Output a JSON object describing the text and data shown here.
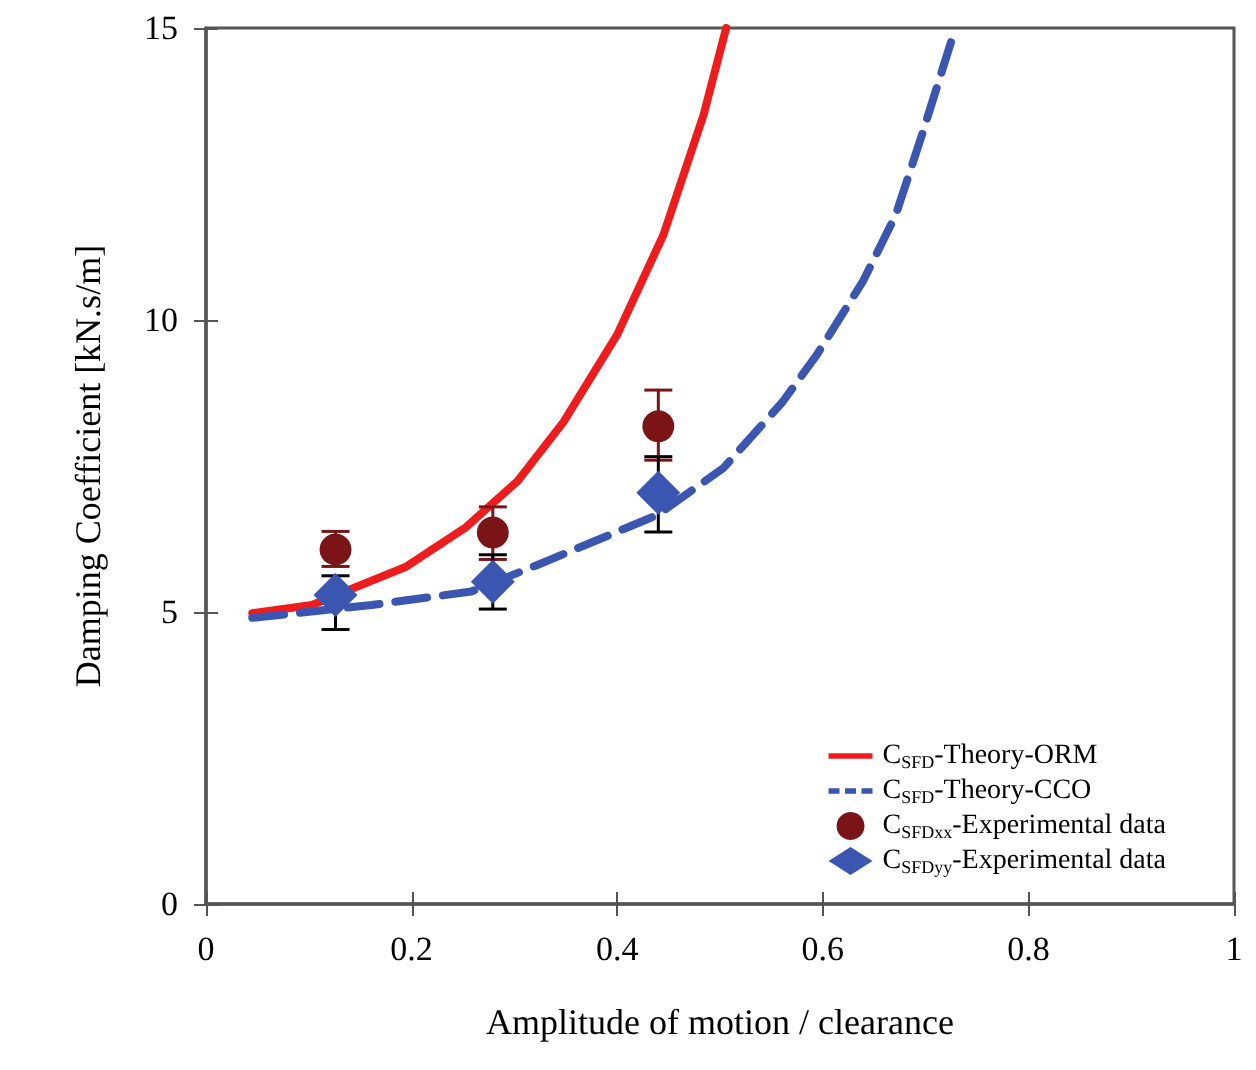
{
  "chart_data": {
    "type": "line",
    "xlabel": "Amplitude of motion / clearance",
    "ylabel": "Damping Coefficient [kN.s/m]",
    "xlim": [
      0,
      1
    ],
    "xticks": [
      0,
      0.2,
      0.4,
      0.6,
      0.8,
      1
    ],
    "ylim": [
      0,
      15
    ],
    "yticks": [
      0,
      5,
      10,
      15
    ],
    "grid": false,
    "legend": "bottom right",
    "series": [
      {
        "name": "C$_{SFD}$-Theory-ORM",
        "color": "#ee1c1c",
        "line_style": "solid",
        "marker": "none",
        "x": [
          0.045,
          0.103,
          0.194,
          0.252,
          0.303,
          0.348,
          0.4,
          0.445,
          0.484,
          0.506
        ],
        "values": [
          4.98,
          5.12,
          5.77,
          6.44,
          7.24,
          8.26,
          9.75,
          11.46,
          13.51,
          15
        ]
      },
      {
        "name": "C$_{SFD}$-Theory-CCO",
        "color": "#3a56b0",
        "line_style": "dashed",
        "marker": "none",
        "x": [
          0.045,
          0.161,
          0.258,
          0.323,
          0.439,
          0.503,
          0.561,
          0.594,
          0.639,
          0.671,
          0.697,
          0.729
        ],
        "values": [
          4.9,
          5.12,
          5.35,
          5.81,
          6.66,
          7.46,
          8.6,
          9.4,
          10.66,
          11.8,
          13.2,
          15
        ]
      },
      {
        "name": "C$_{SFDxx}$-Experimental data",
        "type": "scatter",
        "color": "#7b1416",
        "marker": "circle",
        "x": [
          0.126,
          0.279,
          0.44
        ],
        "values": [
          6.07,
          6.36,
          8.18
        ],
        "errors": [
          [
            5.78,
            6.38
          ],
          [
            5.9,
            6.8
          ],
          [
            7.6,
            8.8
          ]
        ]
      },
      {
        "name": "C$_{SFDyy}$-Experimental data",
        "type": "scatter",
        "color": "#3a56b0",
        "marker": "diamond",
        "x": [
          0.126,
          0.279,
          0.44
        ],
        "values": [
          5.29,
          5.52,
          7.04
        ],
        "errors": [
          [
            4.7,
            5.62
          ],
          [
            5.05,
            5.98
          ],
          [
            6.37,
            7.66
          ]
        ]
      }
    ]
  }
}
